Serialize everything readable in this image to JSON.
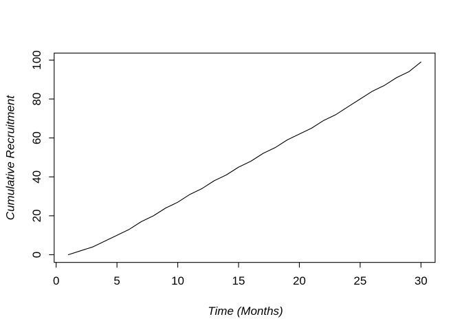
{
  "chart_data": {
    "type": "line",
    "title": "",
    "xlabel": "Time (Months)",
    "ylabel": "Cumulative Recruitment",
    "x": [
      1,
      2,
      3,
      4,
      5,
      6,
      7,
      8,
      9,
      10,
      11,
      12,
      13,
      14,
      15,
      16,
      17,
      18,
      19,
      20,
      21,
      22,
      23,
      24,
      25,
      26,
      27,
      28,
      29,
      30
    ],
    "values": [
      0,
      2,
      4,
      7,
      10,
      13,
      17,
      20,
      24,
      27,
      31,
      34,
      38,
      41,
      45,
      48,
      52,
      55,
      59,
      62,
      65,
      69,
      72,
      76,
      80,
      84,
      87,
      91,
      94,
      99
    ],
    "x_ticks": [
      0,
      5,
      10,
      15,
      20,
      25,
      30
    ],
    "y_ticks": [
      0,
      20,
      40,
      60,
      80,
      100
    ],
    "xlim": [
      0,
      30
    ],
    "ylim": [
      0,
      100
    ],
    "grid": false,
    "legend": "none",
    "line_color": "#000000",
    "box_color": "#000000",
    "background_color": "#ffffff"
  }
}
